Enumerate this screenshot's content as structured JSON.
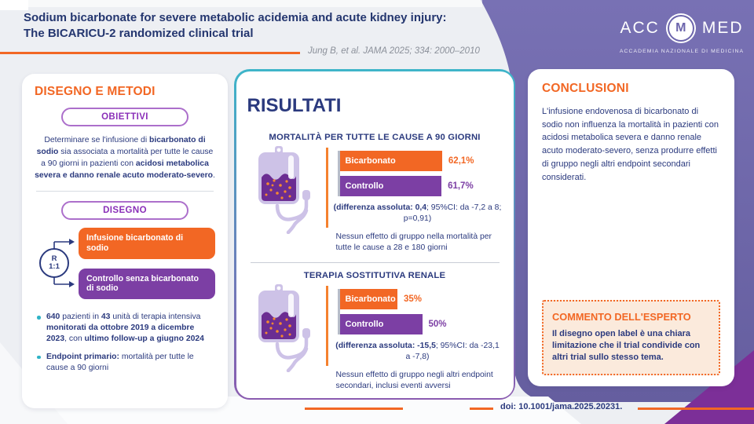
{
  "header": {
    "title_line1": "Sodium bicarbonate for severe metabolic acidemia and acute kidney injury:",
    "title_line2": "The BICARICU-2 randomized clinical trial",
    "citation": "Jung B, et al. JAMA 2025; 334: 2000–2010",
    "logo": {
      "left": "ACC",
      "m": "M",
      "right": "MED",
      "subtitle": "ACCADEMIA NAZIONALE DI MEDICINA"
    }
  },
  "methods": {
    "title": "DISEGNO E METODI",
    "objectives_label": "OBIETTIVI",
    "objectives": [
      {
        "t": "Determinare se l'infusione di ",
        "b": false
      },
      {
        "t": "bicarbonato di sodio",
        "b": true
      },
      {
        "t": " sia associata a mortalità per tutte le cause a 90 giorni in pazienti con ",
        "b": false
      },
      {
        "t": "acidosi metabolica severa e danno renale acuto moderato-severo",
        "b": true
      },
      {
        "t": ".",
        "b": false
      }
    ],
    "design_label": "DISEGNO",
    "randomization": {
      "letter": "R",
      "ratio": "1:1"
    },
    "arm1": "Infusione bicarbonato di sodio",
    "arm2": "Controllo senza bicarbonato di sodio",
    "bullets": [
      [
        {
          "t": "640",
          "b": true
        },
        {
          "t": " pazienti in ",
          "b": false
        },
        {
          "t": "43",
          "b": true
        },
        {
          "t": " unità di terapia intensiva ",
          "b": false
        },
        {
          "t": "monitorati da ottobre 2019 a dicembre 2023",
          "b": true
        },
        {
          "t": ", con ",
          "b": false
        },
        {
          "t": "ultimo follow-up a giugno 2024",
          "b": true
        }
      ],
      [
        {
          "t": "Endpoint primario:",
          "b": true
        },
        {
          "t": " mortalità per tutte le cause a 90 giorni",
          "b": false
        }
      ]
    ]
  },
  "results": {
    "title": "RISULTATI",
    "sections": [
      {
        "caption": [
          {
            "t": "(differenza assoluta: 0,4",
            "b": true
          },
          {
            "t": "; 95%CI: da -7,2 a 8; p=0,91)",
            "b": false
          }
        ],
        "note": "Nessun effetto di gruppo nella mortalità per tutte le cause a 28 e 180 giorni"
      },
      {
        "caption": [
          {
            "t": "(differenza assoluta: -15,5",
            "b": true
          },
          {
            "t": "; 95%CI: da -23,1 a -7,8)",
            "b": false
          }
        ],
        "note": "Nessun effetto di gruppo negli altri endpoint secondari, inclusi eventi avversi"
      }
    ]
  },
  "chart_data": [
    {
      "type": "bar",
      "orientation": "horizontal",
      "title": "MORTALITÀ PER TUTTE LE CAUSE A 90 GIORNI",
      "categories": [
        "Bicarbonato",
        "Controllo"
      ],
      "values": [
        62.1,
        61.7
      ],
      "value_labels": [
        "62,1%",
        "61,7%"
      ],
      "colors": [
        "#F26724",
        "#7C3FA4"
      ],
      "xlim": [
        0,
        100
      ]
    },
    {
      "type": "bar",
      "orientation": "horizontal",
      "title": "TERAPIA SOSTITUTIVA RENALE",
      "categories": [
        "Bicarbonato",
        "Controllo"
      ],
      "values": [
        35,
        50
      ],
      "value_labels": [
        "35%",
        "50%"
      ],
      "colors": [
        "#F26724",
        "#7C3FA4"
      ],
      "xlim": [
        0,
        100
      ]
    }
  ],
  "conclusions": {
    "title": "CONCLUSIONI",
    "text": "L'infusione endovenosa di bicarbonato di sodio non influenza la mortalità in pazienti con acidosi metabolica severa e danno renale acuto moderato-severo, senza produrre effetti di gruppo negli altri endpoint secondari considerati."
  },
  "expert": {
    "title": "COMMENTO DELL'ESPERTO",
    "text": "Il disegno open label è una chiara limitazione che il trial condivide con altri trial sullo stesso tema."
  },
  "footer": {
    "doi": "doi: 10.1001/jama.2025.20231."
  },
  "colors": {
    "accent_orange": "#F26724",
    "brand_purple": "#6C65AC",
    "bar_purple": "#7C3FA4",
    "teal": "#2FB3C6",
    "dark_blue": "#2B3A7E",
    "wedge_purple": "#7C2F98",
    "peach": "#FBEADC"
  }
}
